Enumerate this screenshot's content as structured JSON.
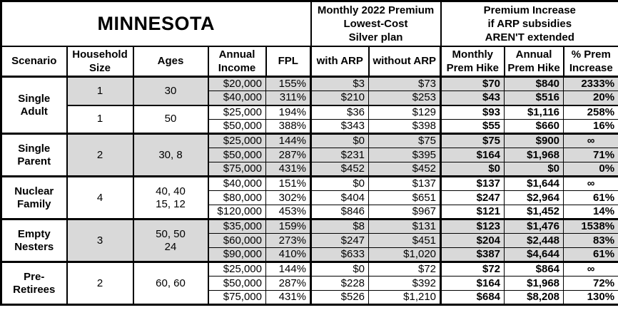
{
  "title": "MINNESOTA",
  "colors": {
    "shaded_row_background": "#d9d9d9",
    "border": "#000000",
    "background": "#ffffff"
  },
  "header": {
    "premium_group": "Monthly 2022 Premium\nLowest-Cost\nSilver plan",
    "increase_group": "Premium Increase\nif ARP subsidies\nAREN'T extended",
    "columns": [
      "Scenario",
      "Household\nSize",
      "Ages",
      "Annual\nIncome",
      "FPL",
      "with ARP",
      "without ARP",
      "Monthly\nPrem Hike",
      "Annual\nPrem Hike",
      "% Prem\nIncrease"
    ]
  },
  "groups": [
    {
      "scenario": "Single\nAdult",
      "subgroups": [
        {
          "household": "1",
          "ages": "30",
          "shaded": true,
          "rows": [
            [
              "$20,000",
              "155%",
              "$3",
              "$73",
              "$70",
              "$840",
              "2333%"
            ],
            [
              "$40,000",
              "311%",
              "$210",
              "$253",
              "$43",
              "$516",
              "20%"
            ]
          ]
        },
        {
          "household": "1",
          "ages": "50",
          "shaded": false,
          "rows": [
            [
              "$25,000",
              "194%",
              "$36",
              "$129",
              "$93",
              "$1,116",
              "258%"
            ],
            [
              "$50,000",
              "388%",
              "$343",
              "$398",
              "$55",
              "$660",
              "16%"
            ]
          ]
        }
      ]
    },
    {
      "scenario": "Single\nParent",
      "subgroups": [
        {
          "household": "2",
          "ages": "30, 8",
          "shaded": true,
          "rows": [
            [
              "$25,000",
              "144%",
              "$0",
              "$75",
              "$75",
              "$900",
              "∞"
            ],
            [
              "$50,000",
              "287%",
              "$231",
              "$395",
              "$164",
              "$1,968",
              "71%"
            ],
            [
              "$75,000",
              "431%",
              "$452",
              "$452",
              "$0",
              "$0",
              "0%"
            ]
          ]
        }
      ]
    },
    {
      "scenario": "Nuclear\nFamily",
      "subgroups": [
        {
          "household": "4",
          "ages": "40, 40\n15, 12",
          "shaded": false,
          "rows": [
            [
              "$40,000",
              "151%",
              "$0",
              "$137",
              "$137",
              "$1,644",
              "∞"
            ],
            [
              "$80,000",
              "302%",
              "$404",
              "$651",
              "$247",
              "$2,964",
              "61%"
            ],
            [
              "$120,000",
              "453%",
              "$846",
              "$967",
              "$121",
              "$1,452",
              "14%"
            ]
          ]
        }
      ]
    },
    {
      "scenario": "Empty\nNesters",
      "subgroups": [
        {
          "household": "3",
          "ages": "50, 50\n24",
          "shaded": true,
          "rows": [
            [
              "$35,000",
              "159%",
              "$8",
              "$131",
              "$123",
              "$1,476",
              "1538%"
            ],
            [
              "$60,000",
              "273%",
              "$247",
              "$451",
              "$204",
              "$2,448",
              "83%"
            ],
            [
              "$90,000",
              "410%",
              "$633",
              "$1,020",
              "$387",
              "$4,644",
              "61%"
            ]
          ]
        }
      ]
    },
    {
      "scenario": "Pre-\nRetirees",
      "subgroups": [
        {
          "household": "2",
          "ages": "60, 60",
          "shaded": false,
          "rows": [
            [
              "$25,000",
              "144%",
              "$0",
              "$72",
              "$72",
              "$864",
              "∞"
            ],
            [
              "$50,000",
              "287%",
              "$228",
              "$392",
              "$164",
              "$1,968",
              "72%"
            ],
            [
              "$75,000",
              "431%",
              "$526",
              "$1,210",
              "$684",
              "$8,208",
              "130%"
            ]
          ]
        }
      ]
    }
  ]
}
